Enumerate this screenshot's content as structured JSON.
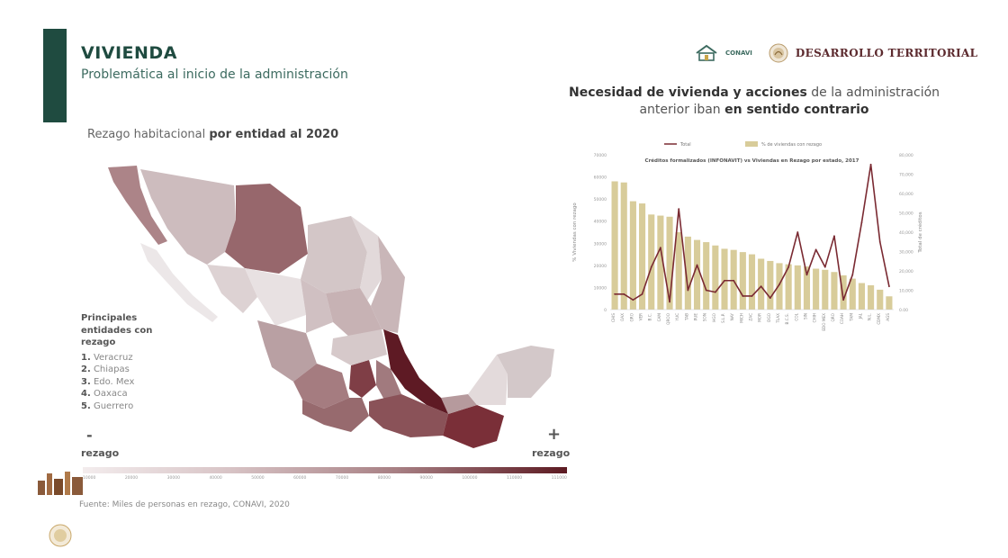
{
  "header": {
    "title": "VIVIENDA",
    "subtitle": "Problemática al inicio de la administración",
    "logo_small": "CONAVI",
    "logo_main": "DESARROLLO TERRITORIAL"
  },
  "map": {
    "heading_normal": "Rezago habitacional ",
    "heading_bold": "por entidad al 2020",
    "legend_heading": "Principales entidades con rezago",
    "legend_items": [
      {
        "num": "1.",
        "name": "Veracruz"
      },
      {
        "num": "2.",
        "name": "Chiapas"
      },
      {
        "num": "3.",
        "name": "Edo. Mex"
      },
      {
        "num": "4.",
        "name": "Oaxaca"
      },
      {
        "num": "5.",
        "name": "Guerrero"
      }
    ],
    "scale_minus_symbol": "-",
    "scale_minus_label": "rezago",
    "scale_plus_symbol": "+",
    "scale_plus_label": "rezago",
    "scale_ticks": [
      "10000",
      "20000",
      "30000",
      "40000",
      "50000",
      "60000",
      "70000",
      "80000",
      "90000",
      "100000",
      "110000",
      "111000"
    ],
    "colors": {
      "low": "#f3eced",
      "mid": "#a77f83",
      "high": "#5c1a22"
    },
    "source": "Fuente: Miles de personas en rezago, CONAVI, 2020"
  },
  "chart_heading": {
    "part1_bold": "Necesidad de vivienda y acciones",
    "part2": " de la administración anterior iban ",
    "part3_bold": "en sentido contrario"
  },
  "chart_data": {
    "type": "bar",
    "title": "Créditos formalizados (INFONAVIT) vs Viviendas en Rezago por estado, 2017",
    "ylabel": "% Viviendas con rezago",
    "y2label": "Total de créditos",
    "ylim": [
      0,
      70000
    ],
    "y2lim": [
      0,
      80000
    ],
    "yticks": [
      "0",
      "10000",
      "20000",
      "30000",
      "40000",
      "50000",
      "60000",
      "70000"
    ],
    "y2ticks": [
      "0.00",
      "10,000",
      "20,000",
      "30,000",
      "40,000",
      "50,000",
      "60,000",
      "70,000",
      "80,000"
    ],
    "categories": [
      "CHIS",
      "OAX",
      "GRO",
      "VER",
      "B.C.",
      "CAM",
      "QROO",
      "YUC",
      "TAB",
      "PUE",
      "SON",
      "HGO",
      "S.L.P.",
      "NAY",
      "MICH",
      "ZAC",
      "MOR",
      "DGO",
      "TLAX",
      "B.C.S.",
      "COL",
      "SIN",
      "CHIH",
      "EDO MEX",
      "QRO",
      "COAH",
      "TAM",
      "JAL",
      "N.L.",
      "CDMX",
      "AGS"
    ],
    "series": [
      {
        "name": "% de viviendas con rezago",
        "color": "#d8cc9a",
        "values": [
          58000,
          57500,
          49000,
          48000,
          43000,
          42500,
          42000,
          35000,
          33000,
          31500,
          30500,
          29000,
          27500,
          27000,
          26000,
          25000,
          23000,
          22000,
          21000,
          20500,
          20000,
          19500,
          18500,
          18000,
          17000,
          15500,
          14000,
          12000,
          11000,
          9000,
          6000
        ]
      },
      {
        "name": "Total",
        "color": "#7a2a32",
        "values": [
          8000,
          8000,
          5000,
          8000,
          22000,
          32000,
          4000,
          52000,
          10000,
          23000,
          10000,
          9000,
          15000,
          15000,
          7000,
          7000,
          12000,
          6000,
          13000,
          22000,
          40000,
          18000,
          31000,
          22000,
          38000,
          5000,
          18000,
          45000,
          75000,
          35000,
          12000
        ]
      }
    ]
  },
  "icons": [
    "house-logo-icon",
    "eagle-seal-icon",
    "skyline-icon"
  ]
}
